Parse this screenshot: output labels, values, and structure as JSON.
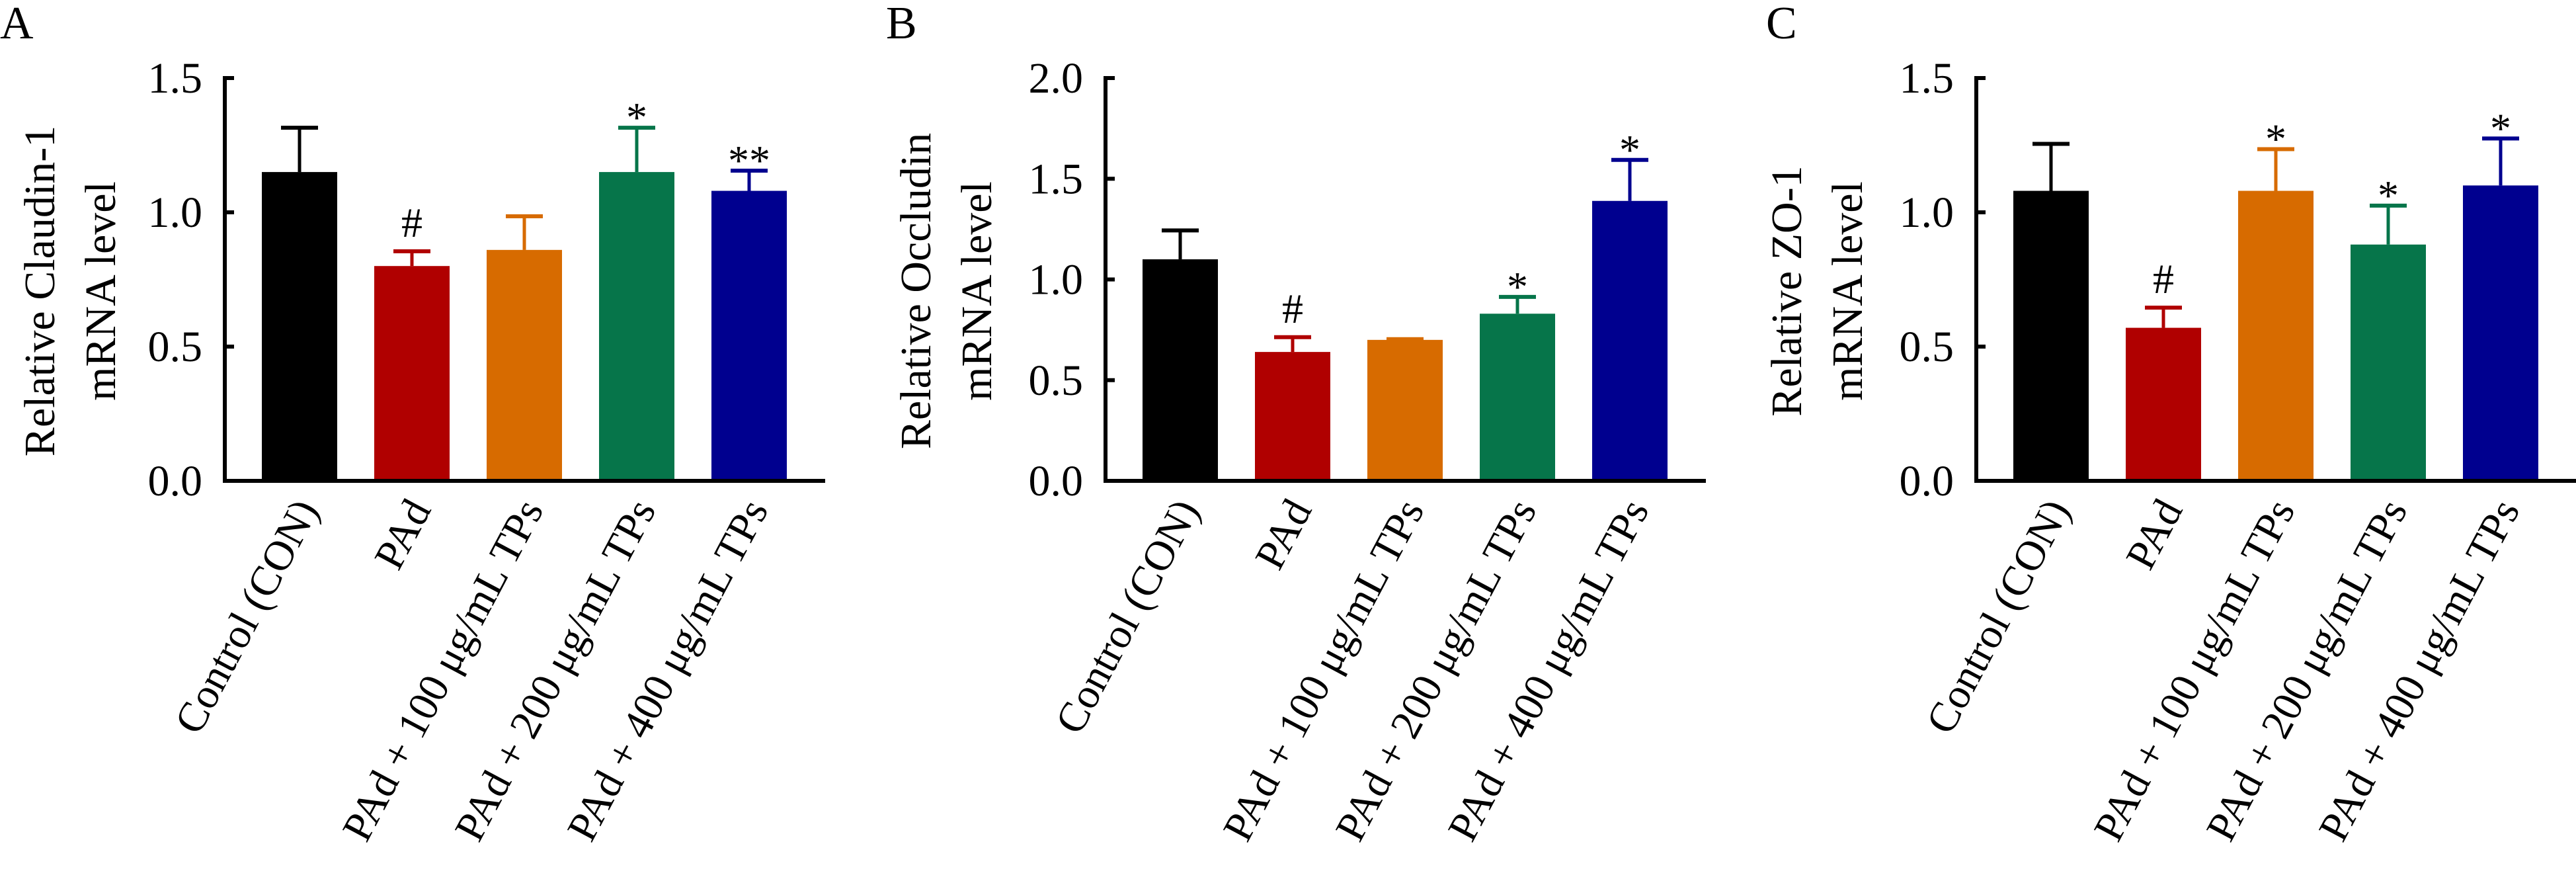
{
  "colors": [
    "#000000",
    "#b00000",
    "#d76b00",
    "#06754a",
    "#00008f"
  ],
  "categories": [
    "Control (CON)",
    "PAd",
    "PAd + 100 μg/mL TPs",
    "PAd + 200 μg/mL TPs",
    "PAd + 400 μg/mL TPs"
  ],
  "chart_data": [
    {
      "type": "bar",
      "panel": "A",
      "ylabel": [
        "Relative Claudin-1",
        "mRNA level"
      ],
      "xlabel": "",
      "ylim": [
        0,
        1.5
      ],
      "yticks": [
        "0.0",
        "0.5",
        "1.0",
        "1.5"
      ],
      "ytick_values": [
        0,
        0.5,
        1.0,
        1.5
      ],
      "categories": [
        "Control (CON)",
        "PAd",
        "PAd + 100 μg/mL TPs",
        "PAd + 200 μg/mL TPs",
        "PAd + 400 μg/mL TPs"
      ],
      "values": [
        1.15,
        0.8,
        0.86,
        1.15,
        1.08
      ],
      "errors": [
        0.17,
        0.06,
        0.13,
        0.17,
        0.08
      ],
      "annotations": [
        "",
        "#",
        "",
        "*",
        "**"
      ],
      "grid": false
    },
    {
      "type": "bar",
      "panel": "B",
      "ylabel": [
        "Relative Occludin",
        "mRNA level"
      ],
      "xlabel": "",
      "ylim": [
        0,
        2.0
      ],
      "yticks": [
        "0.0",
        "0.5",
        "1.0",
        "1.5",
        "2.0"
      ],
      "ytick_values": [
        0,
        0.5,
        1.0,
        1.5,
        2.0
      ],
      "categories": [
        "Control (CON)",
        "PAd",
        "PAd + 100 μg/mL TPs",
        "PAd + 200 μg/mL TPs",
        "PAd + 400 μg/mL TPs"
      ],
      "values": [
        1.1,
        0.64,
        0.7,
        0.83,
        1.39
      ],
      "errors": [
        0.15,
        0.08,
        0.01,
        0.09,
        0.21
      ],
      "annotations": [
        "",
        "#",
        "",
        "*",
        "*"
      ],
      "grid": false
    },
    {
      "type": "bar",
      "panel": "C",
      "ylabel": [
        "Relative ZO-1",
        "mRNA level"
      ],
      "xlabel": "",
      "ylim": [
        0,
        1.5
      ],
      "yticks": [
        "0.0",
        "0.5",
        "1.0",
        "1.5"
      ],
      "ytick_values": [
        0,
        0.5,
        1.0,
        1.5
      ],
      "categories": [
        "Control (CON)",
        "PAd",
        "PAd + 100 μg/mL TPs",
        "PAd + 200 μg/mL TPs",
        "PAd + 400 μg/mL TPs"
      ],
      "values": [
        1.08,
        0.57,
        1.08,
        0.88,
        1.1
      ],
      "errors": [
        0.18,
        0.08,
        0.16,
        0.15,
        0.18
      ],
      "annotations": [
        "",
        "#",
        "*",
        "*",
        "*"
      ],
      "grid": false
    }
  ]
}
